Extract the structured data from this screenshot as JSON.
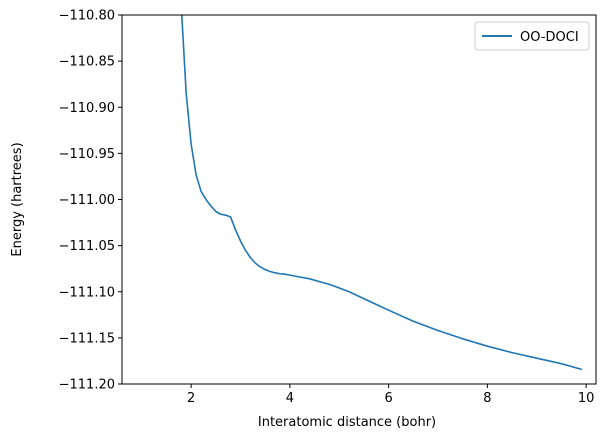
{
  "chart_data": {
    "type": "line",
    "xlabel": "Interatomic distance (bohr)",
    "ylabel": "Energy (hartrees)",
    "xlim": [
      0.6,
      10.2
    ],
    "ylim": [
      -111.2,
      -110.8
    ],
    "x_ticks": [
      2,
      4,
      6,
      8,
      10
    ],
    "x_tick_labels": [
      "2",
      "4",
      "6",
      "8",
      "10"
    ],
    "y_ticks": [
      -111.2,
      -111.15,
      -111.1,
      -111.05,
      -111.0,
      -110.95,
      -110.9,
      -110.85,
      -110.8
    ],
    "y_tick_labels": [
      "−111.20",
      "−111.15",
      "−111.10",
      "−111.05",
      "−111.00",
      "−110.95",
      "−110.90",
      "−110.85",
      "−110.80"
    ],
    "grid": false,
    "legend_position": "top-right",
    "series": [
      {
        "name": "OO-DOCI",
        "color": "#1f77b4",
        "x": [
          1.8,
          1.9,
          2.0,
          2.1,
          2.2,
          2.3,
          2.4,
          2.5,
          2.6,
          2.7,
          2.8,
          2.9,
          3.0,
          3.1,
          3.2,
          3.3,
          3.4,
          3.5,
          3.6,
          3.7,
          3.8,
          3.9,
          4.0,
          4.2,
          4.4,
          4.6,
          4.8,
          5.0,
          5.2,
          5.4,
          5.6,
          5.8,
          6.0,
          6.5,
          7.0,
          7.5,
          8.0,
          8.5,
          9.0,
          9.5,
          9.9
        ],
        "y": [
          -110.79,
          -110.885,
          -110.94,
          -110.973,
          -110.991,
          -111.0,
          -111.007,
          -111.013,
          -111.016,
          -111.017,
          -111.019,
          -111.033,
          -111.045,
          -111.055,
          -111.063,
          -111.069,
          -111.073,
          -111.076,
          -111.078,
          -111.0795,
          -111.0805,
          -111.081,
          -111.082,
          -111.084,
          -111.086,
          -111.089,
          -111.092,
          -111.096,
          -111.1,
          -111.105,
          -111.11,
          -111.115,
          -111.12,
          -111.132,
          -111.142,
          -111.151,
          -111.159,
          -111.166,
          -111.172,
          -111.178,
          -111.184
        ]
      }
    ]
  }
}
